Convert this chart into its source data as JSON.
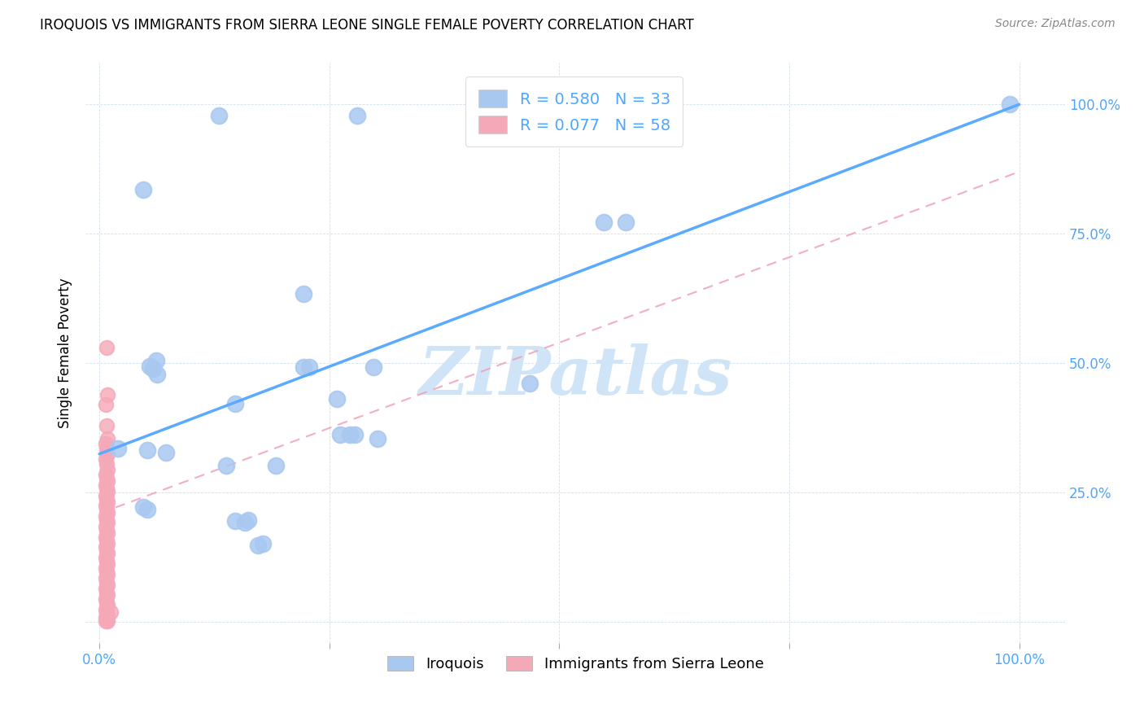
{
  "title": "IROQUOIS VS IMMIGRANTS FROM SIERRA LEONE SINGLE FEMALE POVERTY CORRELATION CHART",
  "source": "Source: ZipAtlas.com",
  "ylabel": "Single Female Poverty",
  "legend_label1": "Iroquois",
  "legend_label2": "Immigrants from Sierra Leone",
  "R1": 0.58,
  "N1": 33,
  "R2": 0.077,
  "N2": 58,
  "color1": "#a8c8f0",
  "color2": "#f5a8b8",
  "line1_color": "#5aaaff",
  "line2_color": "#f0a0b8",
  "watermark": "ZIPatlas",
  "watermark_color": "#d0e4f8",
  "iroquois_x": [
    0.02,
    0.13,
    0.28,
    0.048,
    0.058,
    0.062,
    0.055,
    0.063,
    0.148,
    0.222,
    0.228,
    0.298,
    0.222,
    0.548,
    0.572,
    0.468,
    0.262,
    0.272,
    0.278,
    0.302,
    0.138,
    0.258,
    0.048,
    0.052,
    0.148,
    0.158,
    0.162,
    0.178,
    0.172,
    0.192,
    0.99,
    0.052,
    0.072
  ],
  "iroquois_y": [
    0.335,
    0.978,
    0.978,
    0.835,
    0.49,
    0.505,
    0.495,
    0.478,
    0.422,
    0.492,
    0.492,
    0.492,
    0.635,
    0.772,
    0.772,
    0.462,
    0.362,
    0.362,
    0.362,
    0.355,
    0.302,
    0.432,
    0.222,
    0.218,
    0.195,
    0.192,
    0.198,
    0.152,
    0.148,
    0.302,
    1.0,
    0.332,
    0.328
  ],
  "sl_x": [
    0.008,
    0.009,
    0.007,
    0.008,
    0.009,
    0.007,
    0.008,
    0.009,
    0.007,
    0.008,
    0.009,
    0.007,
    0.008,
    0.009,
    0.007,
    0.008,
    0.009,
    0.007,
    0.008,
    0.009,
    0.007,
    0.008,
    0.009,
    0.007,
    0.008,
    0.009,
    0.007,
    0.008,
    0.009,
    0.007,
    0.008,
    0.009,
    0.007,
    0.008,
    0.009,
    0.007,
    0.008,
    0.009,
    0.007,
    0.008,
    0.009,
    0.007,
    0.008,
    0.009,
    0.007,
    0.008,
    0.009,
    0.007,
    0.008,
    0.009,
    0.007,
    0.008,
    0.009,
    0.007,
    0.008,
    0.009,
    0.007,
    0.012
  ],
  "sl_y": [
    0.53,
    0.44,
    0.42,
    0.38,
    0.355,
    0.345,
    0.335,
    0.325,
    0.315,
    0.305,
    0.295,
    0.285,
    0.278,
    0.272,
    0.265,
    0.258,
    0.252,
    0.245,
    0.238,
    0.232,
    0.225,
    0.218,
    0.212,
    0.205,
    0.198,
    0.192,
    0.185,
    0.178,
    0.172,
    0.165,
    0.158,
    0.152,
    0.145,
    0.138,
    0.132,
    0.125,
    0.118,
    0.112,
    0.105,
    0.098,
    0.092,
    0.085,
    0.078,
    0.072,
    0.065,
    0.058,
    0.052,
    0.045,
    0.038,
    0.032,
    0.025,
    0.018,
    0.012,
    0.008,
    0.005,
    0.003,
    0.002,
    0.02
  ],
  "line1_x0": 0.0,
  "line1_y0": 0.325,
  "line1_x1": 1.0,
  "line1_y1": 1.0,
  "line2_x0": 0.0,
  "line2_y0": 0.21,
  "line2_x1": 1.0,
  "line2_y1": 0.87,
  "xlim": [
    -0.015,
    1.05
  ],
  "ylim": [
    -0.04,
    1.08
  ],
  "xticks": [
    0.0,
    0.25,
    0.5,
    0.75,
    1.0
  ],
  "yticks": [
    0.0,
    0.25,
    0.5,
    0.75,
    1.0
  ],
  "tick_color": "#4da6ff",
  "tick_fontsize": 12,
  "title_fontsize": 12,
  "ylabel_fontsize": 12
}
